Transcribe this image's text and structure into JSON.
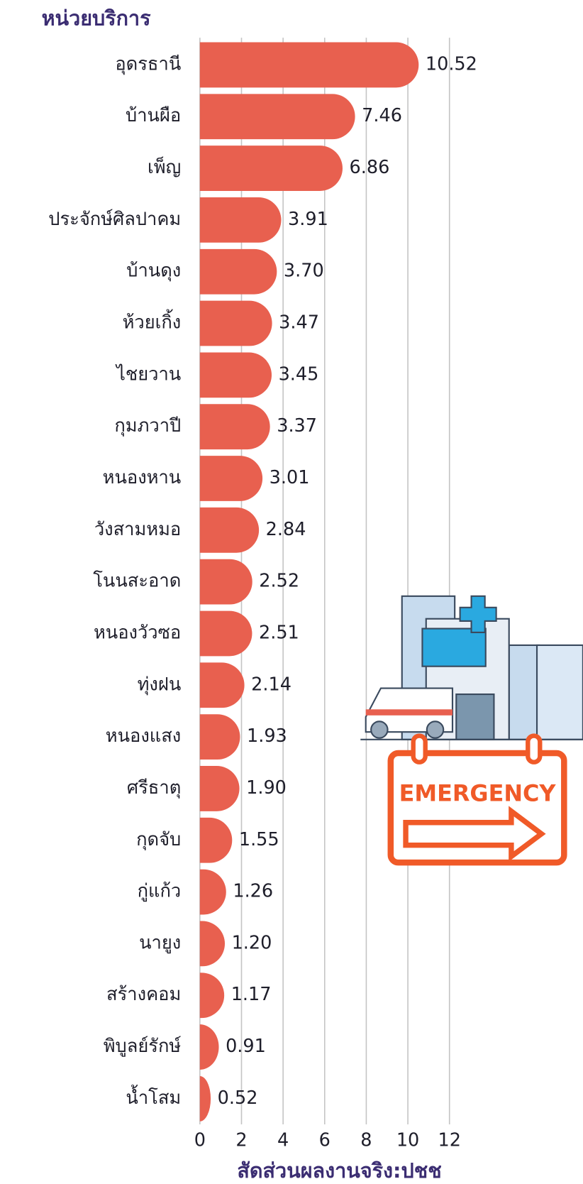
{
  "chart_data": {
    "type": "bar",
    "orientation": "horizontal",
    "title": "หน่วยบริการ",
    "x_label": "สัดส่วนผลงานจริง:ปชช",
    "annotation": "EMERGENCY",
    "categories": [
      "อุดรธานี",
      "บ้านผือ",
      "เพ็ญ",
      "ประจักษ์ศิลปาคม",
      "บ้านดุง",
      "ห้วยเกิ้ง",
      "ไชยวาน",
      "กุมภวาปี",
      "หนองหาน",
      "วังสามหมอ",
      "โนนสะอาด",
      "หนองวัวซอ",
      "ทุ่งฝน",
      "หนองแสง",
      "ศรีธาตุ",
      "กุดจับ",
      "กู่แก้ว",
      "นายูง",
      "สร้างคอม",
      "พิบูลย์รักษ์",
      "น้ำโสม"
    ],
    "values": [
      10.52,
      7.46,
      6.86,
      3.91,
      3.7,
      3.47,
      3.45,
      3.37,
      3.01,
      2.84,
      2.52,
      2.51,
      2.14,
      1.93,
      1.9,
      1.55,
      1.26,
      1.2,
      1.17,
      0.91,
      0.52
    ],
    "value_labels": [
      "10.52",
      "7.46",
      "6.86",
      "3.91",
      "3.70",
      "3.47",
      "3.45",
      "3.37",
      "3.01",
      "2.84",
      "2.52",
      "2.51",
      "2.14",
      "1.93",
      "1.90",
      "1.55",
      "1.26",
      "1.20",
      "1.17",
      "0.91",
      "0.52"
    ],
    "color": "#e8604f",
    "xlim": [
      0,
      12
    ],
    "xticks": [
      0,
      2,
      4,
      6,
      8,
      10,
      12
    ],
    "grid": true
  }
}
